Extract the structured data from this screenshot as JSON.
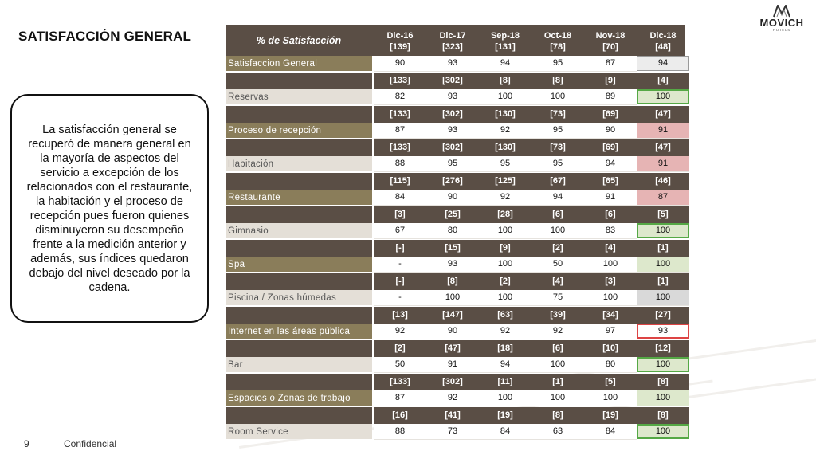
{
  "page": {
    "title": "SATISFACCIÓN GENERAL",
    "summary": "La satisfacción general se recuperó de manera general en la mayoría de aspectos del servicio a excepción de los relacionados con el restaurante, la habitación y el proceso de recepción pues fueron quienes disminuyeron su desempeño frente a la medición anterior y además, sus índices quedaron debajo del nivel deseado por la cadena.",
    "page_number": "9",
    "footer": "Confidencial",
    "logo": {
      "brand": "MOVICH",
      "sub": "HOTELS"
    }
  },
  "table": {
    "header_label": "% de Satisfacción",
    "periods": [
      {
        "name": "Dic-16",
        "n": "[139]"
      },
      {
        "name": "Dic-17",
        "n": "[323]"
      },
      {
        "name": "Sep-18",
        "n": "[131]"
      },
      {
        "name": "Oct-18",
        "n": "[78]"
      },
      {
        "name": "Nov-18",
        "n": "[70]"
      },
      {
        "name": "Dic-18",
        "n": "[48]"
      }
    ],
    "rows": [
      {
        "label": "Satisfaccion General",
        "label_style": "dark",
        "n": null,
        "values": [
          "90",
          "93",
          "94",
          "95",
          "87",
          "94"
        ],
        "last_style": "greybox"
      },
      {
        "label": "Reservas",
        "label_style": "light",
        "n": [
          "[133]",
          "[302]",
          "[8]",
          "[8]",
          "[9]",
          "[4]"
        ],
        "values": [
          "82",
          "93",
          "100",
          "100",
          "89",
          "100"
        ],
        "last_style": "green"
      },
      {
        "label": "Proceso de recepción",
        "label_style": "dark",
        "n": [
          "[133]",
          "[302]",
          "[130]",
          "[73]",
          "[69]",
          "[47]"
        ],
        "values": [
          "87",
          "93",
          "92",
          "95",
          "90",
          "91"
        ],
        "last_style": "red"
      },
      {
        "label": "Habitación",
        "label_style": "light",
        "n": [
          "[133]",
          "[302]",
          "[130]",
          "[73]",
          "[69]",
          "[47]"
        ],
        "values": [
          "88",
          "95",
          "95",
          "95",
          "94",
          "91"
        ],
        "last_style": "red"
      },
      {
        "label": "Restaurante",
        "label_style": "dark",
        "n": [
          "[115]",
          "[276]",
          "[125]",
          "[67]",
          "[65]",
          "[46]"
        ],
        "values": [
          "84",
          "90",
          "92",
          "94",
          "91",
          "87"
        ],
        "last_style": "red"
      },
      {
        "label": "Gimnasio",
        "label_style": "light",
        "n": [
          "[3]",
          "[25]",
          "[28]",
          "[6]",
          "[6]",
          "[5]"
        ],
        "values": [
          "67",
          "80",
          "100",
          "100",
          "83",
          "100"
        ],
        "last_style": "green"
      },
      {
        "label": "Spa",
        "label_style": "dark",
        "n": [
          "[-]",
          "[15]",
          "[9]",
          "[2]",
          "[4]",
          "[1]"
        ],
        "values": [
          "-",
          "93",
          "100",
          "50",
          "100",
          "100"
        ],
        "last_style": "greenlight"
      },
      {
        "label": "Piscina / Zonas húmedas",
        "label_style": "light",
        "n": [
          "[-]",
          "[8]",
          "[2]",
          "[4]",
          "[3]",
          "[1]"
        ],
        "values": [
          "-",
          "100",
          "100",
          "75",
          "100",
          "100"
        ],
        "last_style": "grey"
      },
      {
        "label": "Internet en las áreas pública",
        "label_style": "dark",
        "n": [
          "[13]",
          "[147]",
          "[63]",
          "[39]",
          "[34]",
          "[27]"
        ],
        "values": [
          "92",
          "90",
          "92",
          "92",
          "97",
          "93"
        ],
        "last_style": "redbox"
      },
      {
        "label": "Bar",
        "label_style": "light",
        "n": [
          "[2]",
          "[47]",
          "[18]",
          "[6]",
          "[10]",
          "[12]"
        ],
        "values": [
          "50",
          "91",
          "94",
          "100",
          "80",
          "100"
        ],
        "last_style": "green"
      },
      {
        "label": "Espacios o Zonas de trabajo",
        "label_style": "dark",
        "n": [
          "[133]",
          "[302]",
          "[11]",
          "[1]",
          "[5]",
          "[8]"
        ],
        "values": [
          "87",
          "92",
          "100",
          "100",
          "100",
          "100"
        ],
        "last_style": "greenlight"
      },
      {
        "label": "Room Service",
        "label_style": "light",
        "n": [
          "[16]",
          "[41]",
          "[19]",
          "[8]",
          "[19]",
          "[8]"
        ],
        "values": [
          "88",
          "73",
          "84",
          "63",
          "84",
          "100"
        ],
        "last_style": "green"
      }
    ]
  }
}
